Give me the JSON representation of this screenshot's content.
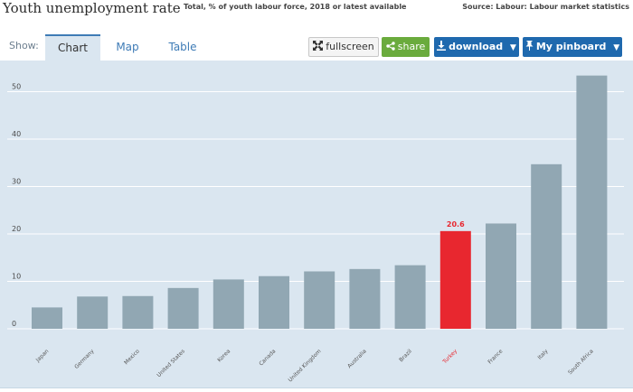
{
  "header": {
    "title": "Youth unemployment rate",
    "subtitle": "Total, % of youth labour force, 2018 or latest available",
    "source": "Source: Labour: Labour market statistics"
  },
  "toolbar": {
    "show_label": "Show:",
    "tabs": [
      {
        "label": "Chart",
        "active": true
      },
      {
        "label": "Map",
        "active": false
      },
      {
        "label": "Table",
        "active": false
      }
    ],
    "fullscreen_label": "fullscreen",
    "share_label": "share",
    "download_label": "download",
    "pinboard_label": "My pinboard",
    "icons": {
      "fullscreen": "expand-arrows-icon",
      "share": "share-icon",
      "download": "download-icon",
      "pinboard": "pin-icon",
      "dropdown": "caret-down-icon"
    }
  },
  "colors": {
    "bar": "#91a7b3",
    "highlight": "#e8272f",
    "plot_background": "#dae6f0",
    "grid": "#ffffff",
    "accent_blue": "#1f69ae",
    "share_green": "#6aab3d"
  },
  "chart_data": {
    "type": "bar",
    "categories": [
      "Japan",
      "Germany",
      "Mexico",
      "United States",
      "Korea",
      "Canada",
      "United Kingdom",
      "Australia",
      "Brazil",
      "Turkey",
      "France",
      "Italy",
      "South Africa"
    ],
    "values": [
      4.5,
      6.8,
      6.9,
      8.6,
      10.4,
      11.1,
      12.1,
      12.6,
      13.4,
      20.6,
      22.2,
      34.7,
      53.4
    ],
    "highlight": "Turkey",
    "highlight_label": "20.6",
    "yticks": [
      0,
      10,
      20,
      30,
      40,
      50
    ],
    "ylim": [
      0,
      55
    ],
    "grid": true,
    "legend": "none",
    "title": "",
    "xlabel": "",
    "ylabel": ""
  }
}
